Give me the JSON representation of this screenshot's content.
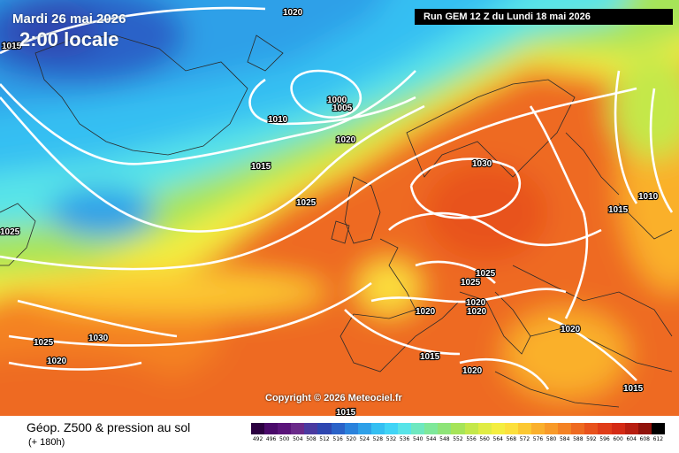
{
  "header": {
    "date": "Mardi 26 mai 2026",
    "time": "2:00 locale",
    "run": "Run GEM 12 Z du Lundi 18 mai 2026"
  },
  "copyright": "Copyright © 2026 Meteociel.fr",
  "footer": {
    "title": "Géop. Z500 & pression au sol",
    "subtitle": "(+ 180h)"
  },
  "legend": {
    "values": [
      "492",
      "496",
      "500",
      "504",
      "508",
      "512",
      "516",
      "520",
      "524",
      "528",
      "532",
      "536",
      "540",
      "544",
      "548",
      "552",
      "556",
      "560",
      "564",
      "568",
      "572",
      "576",
      "580",
      "584",
      "588",
      "592",
      "596",
      "600",
      "604",
      "608",
      "612"
    ],
    "colors": [
      "#2b0040",
      "#4a0a6a",
      "#5a147a",
      "#6a2a8a",
      "#4a3aa0",
      "#2e46b0",
      "#2a62c8",
      "#2a82dc",
      "#2ea0e8",
      "#34bff2",
      "#40d4f6",
      "#58e4e8",
      "#6ee8c0",
      "#7ee89a",
      "#8ee478",
      "#a6e458",
      "#c4e84a",
      "#e0ec44",
      "#f4ee40",
      "#fce03c",
      "#fcc832",
      "#fab02c",
      "#f89a28",
      "#f48224",
      "#ee6a20",
      "#e8521c",
      "#e03c18",
      "#d42a14",
      "#b81e10",
      "#90120a",
      "#000000"
    ]
  },
  "isobar_labels": [
    {
      "text": "1020"
    },
    {
      "text": "1015"
    },
    {
      "text": "1000"
    },
    {
      "text": "1005"
    },
    {
      "text": "1010"
    },
    {
      "text": "1020"
    },
    {
      "text": "1015"
    },
    {
      "text": "1025"
    },
    {
      "text": "1030"
    },
    {
      "text": "1025"
    },
    {
      "text": "1025"
    },
    {
      "text": "1030"
    },
    {
      "text": "1020"
    },
    {
      "text": "1025"
    },
    {
      "text": "1025"
    },
    {
      "text": "1020"
    },
    {
      "text": "1020"
    },
    {
      "text": "1020"
    },
    {
      "text": "1015"
    },
    {
      "text": "1020"
    },
    {
      "text": "1020"
    },
    {
      "text": "1010"
    },
    {
      "text": "1015"
    },
    {
      "text": "1015"
    },
    {
      "text": "1015"
    }
  ]
}
